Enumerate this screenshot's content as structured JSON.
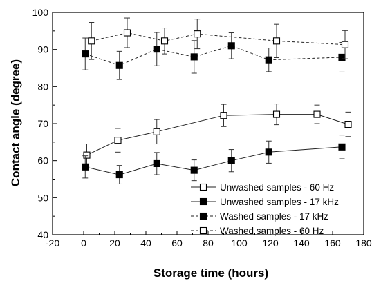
{
  "chart_data": {
    "type": "line",
    "xlabel": "Storage time (hours)",
    "ylabel": "Contact angle (degree)",
    "xlim": [
      -20,
      180
    ],
    "ylim": [
      40,
      100
    ],
    "xticks": [
      -20,
      0,
      20,
      40,
      60,
      80,
      100,
      120,
      140,
      160,
      180
    ],
    "yticks": [
      40,
      50,
      60,
      70,
      80,
      90,
      100
    ],
    "grid": false,
    "legend_position": "bottom-right",
    "series": [
      {
        "name": "Unwashed samples - 60 Hz",
        "marker": "open-square",
        "line": "solid",
        "x": [
          2,
          22,
          47,
          90,
          124,
          150,
          170
        ],
        "y": [
          61.5,
          65.5,
          67.8,
          72.2,
          72.5,
          72.5,
          69.8
        ],
        "err": [
          3.0,
          3.2,
          3.3,
          3.0,
          2.8,
          2.5,
          3.3
        ]
      },
      {
        "name": "Unwashed samples - 17 kHz",
        "marker": "filled-square",
        "line": "solid",
        "x": [
          1,
          23,
          47,
          71,
          95,
          119,
          166
        ],
        "y": [
          58.3,
          56.2,
          59.2,
          57.4,
          60.0,
          62.3,
          63.7
        ],
        "err": [
          3.0,
          2.5,
          3.0,
          2.8,
          3.0,
          3.0,
          3.2
        ]
      },
      {
        "name": "Washed samples - 17 kHz",
        "marker": "filled-square",
        "line": "dashed",
        "x": [
          1,
          23,
          47,
          71,
          95,
          119,
          166
        ],
        "y": [
          88.8,
          85.7,
          90.1,
          88.0,
          91.0,
          87.2,
          87.9
        ],
        "err": [
          4.3,
          3.8,
          4.5,
          4.4,
          3.5,
          3.2,
          4.0
        ]
      },
      {
        "name": "Washed samples - 60 Hz",
        "marker": "open-square",
        "line": "dashed",
        "x": [
          5,
          28,
          52,
          73,
          124,
          168
        ],
        "y": [
          92.3,
          94.5,
          92.3,
          94.2,
          92.3,
          91.3
        ],
        "err": [
          5.0,
          4.0,
          3.5,
          4.0,
          4.5,
          3.8
        ]
      }
    ]
  }
}
